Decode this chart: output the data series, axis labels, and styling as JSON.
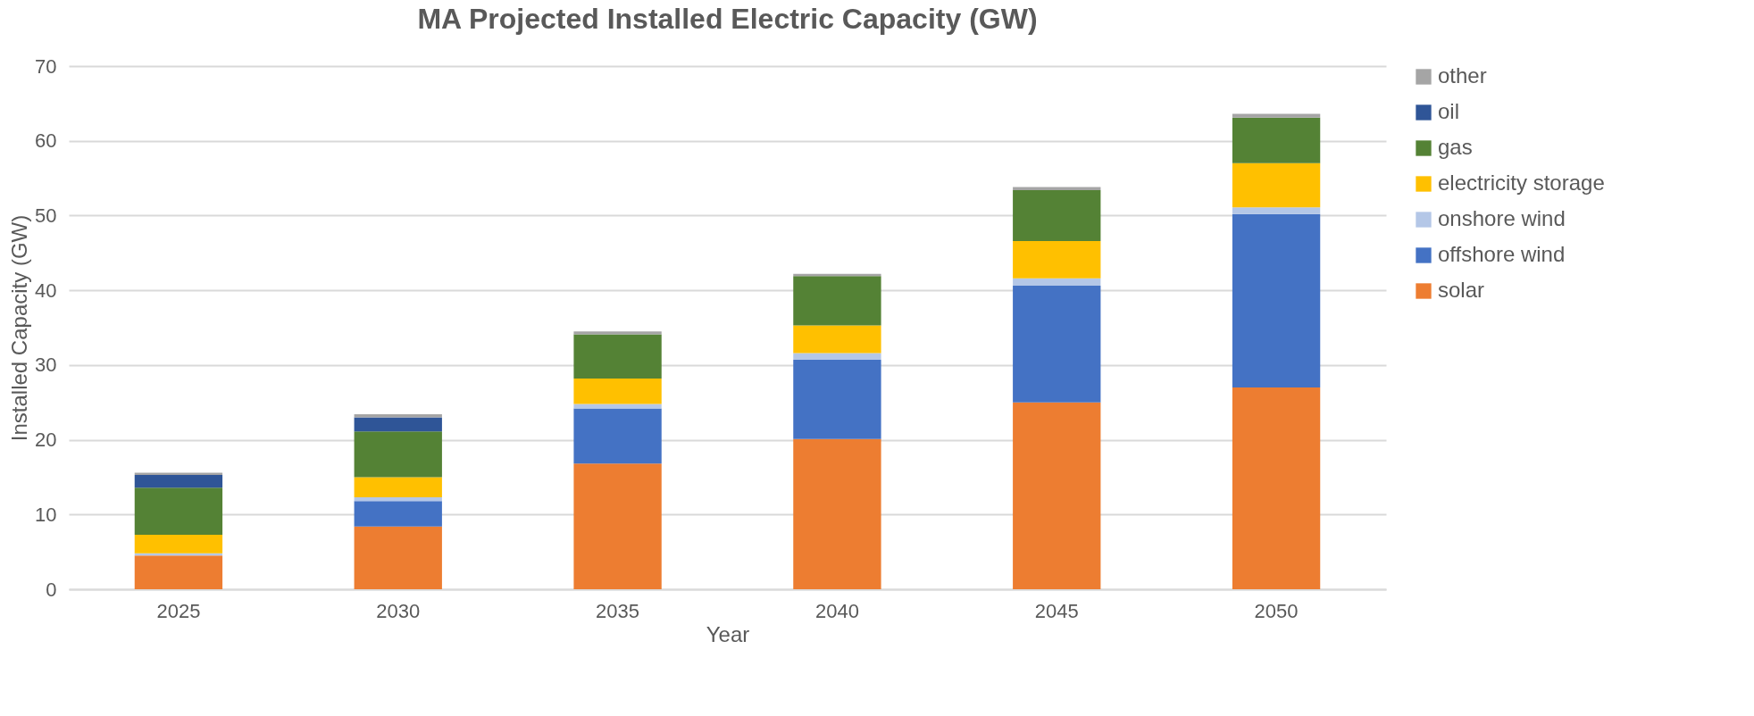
{
  "chart_data": {
    "type": "bar",
    "title": "MA Projected Installed Electric Capacity (GW)",
    "xlabel": "Year",
    "ylabel": "Installed Capacity (GW)",
    "categories": [
      "2025",
      "2030",
      "2035",
      "2040",
      "2045",
      "2050"
    ],
    "stacked": true,
    "ylim": [
      0,
      70
    ],
    "yticks": [
      0,
      10,
      20,
      30,
      40,
      50,
      60,
      70
    ],
    "grid": "y",
    "legend": "right",
    "series": [
      {
        "name": "solar",
        "color": "#ed7d31",
        "values": [
          4.5,
          8.4,
          16.8,
          20.1,
          25.0,
          27.0
        ]
      },
      {
        "name": "offshore wind",
        "color": "#4472c4",
        "values": [
          0,
          3.4,
          7.4,
          10.6,
          15.6,
          23.2
        ]
      },
      {
        "name": "onshore wind",
        "color": "#b4c7e7",
        "values": [
          0.3,
          0.5,
          0.6,
          0.9,
          1.0,
          0.9
        ]
      },
      {
        "name": "electricity storage",
        "color": "#ffc000",
        "values": [
          2.5,
          2.7,
          3.4,
          3.7,
          5.0,
          5.9
        ]
      },
      {
        "name": "gas",
        "color": "#548235",
        "values": [
          6.3,
          6.1,
          5.9,
          6.6,
          6.8,
          6.1
        ]
      },
      {
        "name": "oil",
        "color": "#2f5597",
        "values": [
          1.7,
          1.9,
          0,
          0,
          0,
          0
        ]
      },
      {
        "name": "other",
        "color": "#a5a5a5",
        "values": [
          0.3,
          0.4,
          0.4,
          0.3,
          0.4,
          0.5
        ]
      }
    ]
  }
}
